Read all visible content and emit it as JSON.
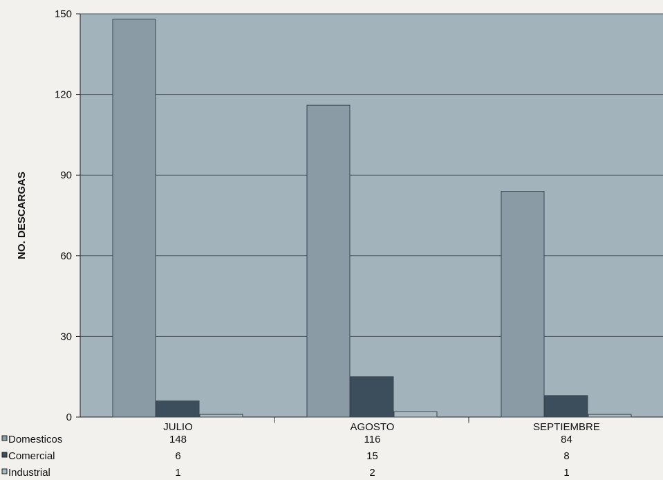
{
  "chart_data": {
    "type": "bar",
    "ylabel": "NO. DESCARGAS",
    "ylim": [
      0,
      150
    ],
    "yticks": [
      0,
      30,
      60,
      90,
      120,
      150
    ],
    "categories": [
      "JULIO",
      "AGOSTO",
      "SEPTIEMBRE"
    ],
    "series": [
      {
        "name": "Domesticos",
        "values": [
          148,
          116,
          84
        ],
        "color": "#8a9ba6"
      },
      {
        "name": "Comercial",
        "values": [
          6,
          15,
          8
        ],
        "color": "#3c4d5b"
      },
      {
        "name": "Industrial",
        "values": [
          1,
          2,
          1
        ],
        "color": "#aab8c0"
      }
    ],
    "plot_background": "#a3b3bc",
    "grid": true,
    "legend": "data-table-left"
  }
}
